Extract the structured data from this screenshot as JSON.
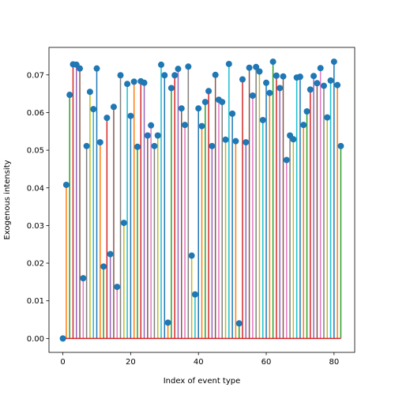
{
  "chart_data": {
    "type": "stem",
    "title": "",
    "xlabel": "Index of event type",
    "ylabel": "Exogenous intensity",
    "xlim": [
      -4.1,
      86.1
    ],
    "ylim": [
      -0.0037,
      0.0773
    ],
    "xticks": [
      0,
      20,
      40,
      60,
      80
    ],
    "xtick_labels": [
      "0",
      "20",
      "40",
      "60",
      "80"
    ],
    "yticks": [
      0.0,
      0.01,
      0.02,
      0.03,
      0.04,
      0.05,
      0.06,
      0.07
    ],
    "ytick_labels": [
      "0.00",
      "0.01",
      "0.02",
      "0.03",
      "0.04",
      "0.05",
      "0.06",
      "0.07"
    ],
    "grid": false,
    "legend": "none",
    "marker_color": "#1f77b4",
    "baseline_color": "#d62728",
    "stem_colors": [
      "#1f77b4",
      "#ff7f0e",
      "#2ca02c",
      "#d62728",
      "#9467bd",
      "#8c564b",
      "#e377c2",
      "#7f7f7f",
      "#bcbd22",
      "#17becf"
    ],
    "x": [
      0,
      1,
      2,
      3,
      4,
      5,
      6,
      7,
      8,
      9,
      10,
      11,
      12,
      13,
      14,
      15,
      16,
      17,
      18,
      19,
      20,
      21,
      22,
      23,
      24,
      25,
      26,
      27,
      28,
      29,
      30,
      31,
      32,
      33,
      34,
      35,
      36,
      37,
      38,
      39,
      40,
      41,
      42,
      43,
      44,
      45,
      46,
      47,
      48,
      49,
      50,
      51,
      52,
      53,
      54,
      55,
      56,
      57,
      58,
      59,
      60,
      61,
      62,
      63,
      64,
      65,
      66,
      67,
      68,
      69,
      70,
      71,
      72,
      73,
      74,
      75,
      76,
      77,
      78,
      79,
      80,
      81,
      82
    ],
    "values": [
      0.0,
      0.0408,
      0.0647,
      0.0728,
      0.0727,
      0.0717,
      0.016,
      0.0511,
      0.0655,
      0.0609,
      0.0717,
      0.0521,
      0.0191,
      0.0586,
      0.0224,
      0.0615,
      0.0137,
      0.0699,
      0.0307,
      0.0676,
      0.0591,
      0.0682,
      0.0509,
      0.0683,
      0.0679,
      0.0539,
      0.0566,
      0.0511,
      0.0539,
      0.0727,
      0.0699,
      0.0042,
      0.0665,
      0.0699,
      0.0716,
      0.0611,
      0.0567,
      0.0722,
      0.022,
      0.0117,
      0.0611,
      0.0564,
      0.0628,
      0.0657,
      0.0511,
      0.07,
      0.0634,
      0.0628,
      0.0528,
      0.0729,
      0.0597,
      0.0524,
      0.004,
      0.0688,
      0.0521,
      0.0719,
      0.0645,
      0.0721,
      0.0709,
      0.058,
      0.0679,
      0.0652,
      0.0735,
      0.0698,
      0.0665,
      0.0696,
      0.0474,
      0.0539,
      0.0529,
      0.0693,
      0.0695,
      0.0567,
      0.0603,
      0.0661,
      0.0697,
      0.0678,
      0.0718,
      0.0671,
      0.0587,
      0.0685,
      0.0735,
      0.0673,
      0.0511
    ]
  }
}
